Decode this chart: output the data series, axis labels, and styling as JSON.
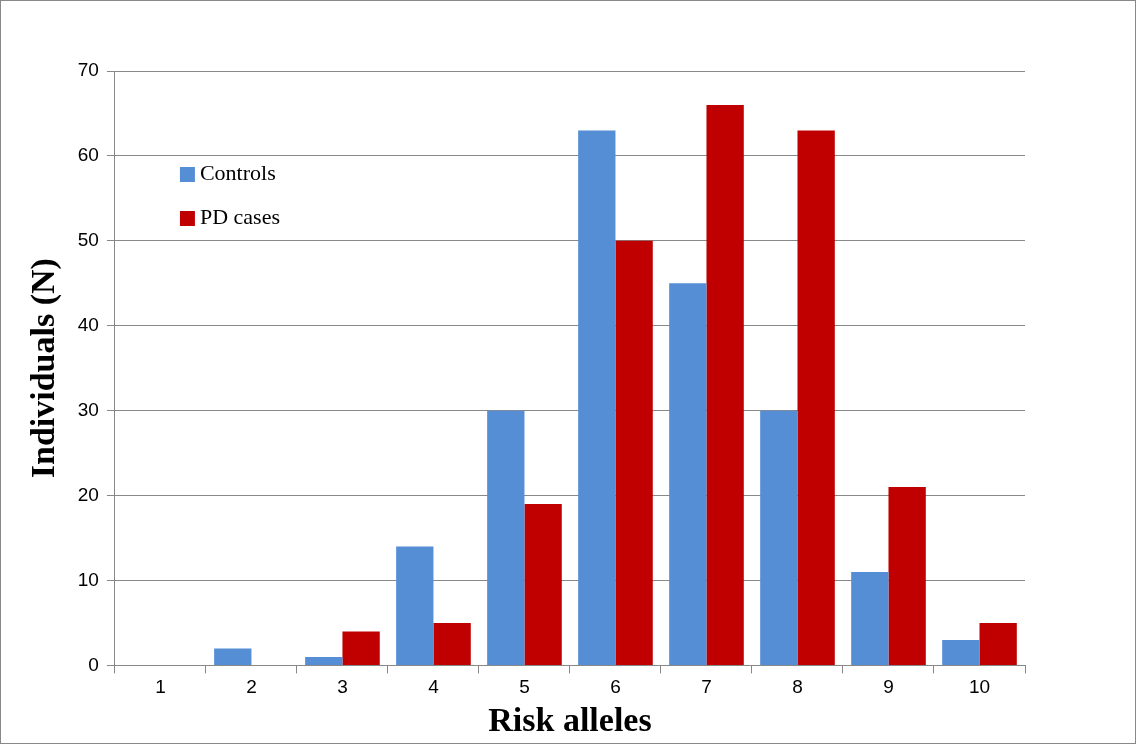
{
  "chart_data": {
    "type": "bar",
    "xlabel": "Risk alleles",
    "ylabel": "Individuals (N)",
    "categories": [
      "1",
      "2",
      "3",
      "4",
      "5",
      "6",
      "7",
      "8",
      "9",
      "10"
    ],
    "series": [
      {
        "name": "Controls",
        "color": "#558ed5",
        "values": [
          0,
          2,
          1,
          14,
          30,
          63,
          45,
          30,
          11,
          3
        ]
      },
      {
        "name": "PD cases",
        "color": "#c00000",
        "values": [
          0,
          0,
          4,
          5,
          19,
          50,
          66,
          63,
          21,
          5
        ]
      }
    ],
    "ylim": [
      0,
      70
    ],
    "yticks": [
      0,
      10,
      20,
      30,
      40,
      50,
      60,
      70
    ],
    "grid": "y",
    "legend": "top left"
  }
}
